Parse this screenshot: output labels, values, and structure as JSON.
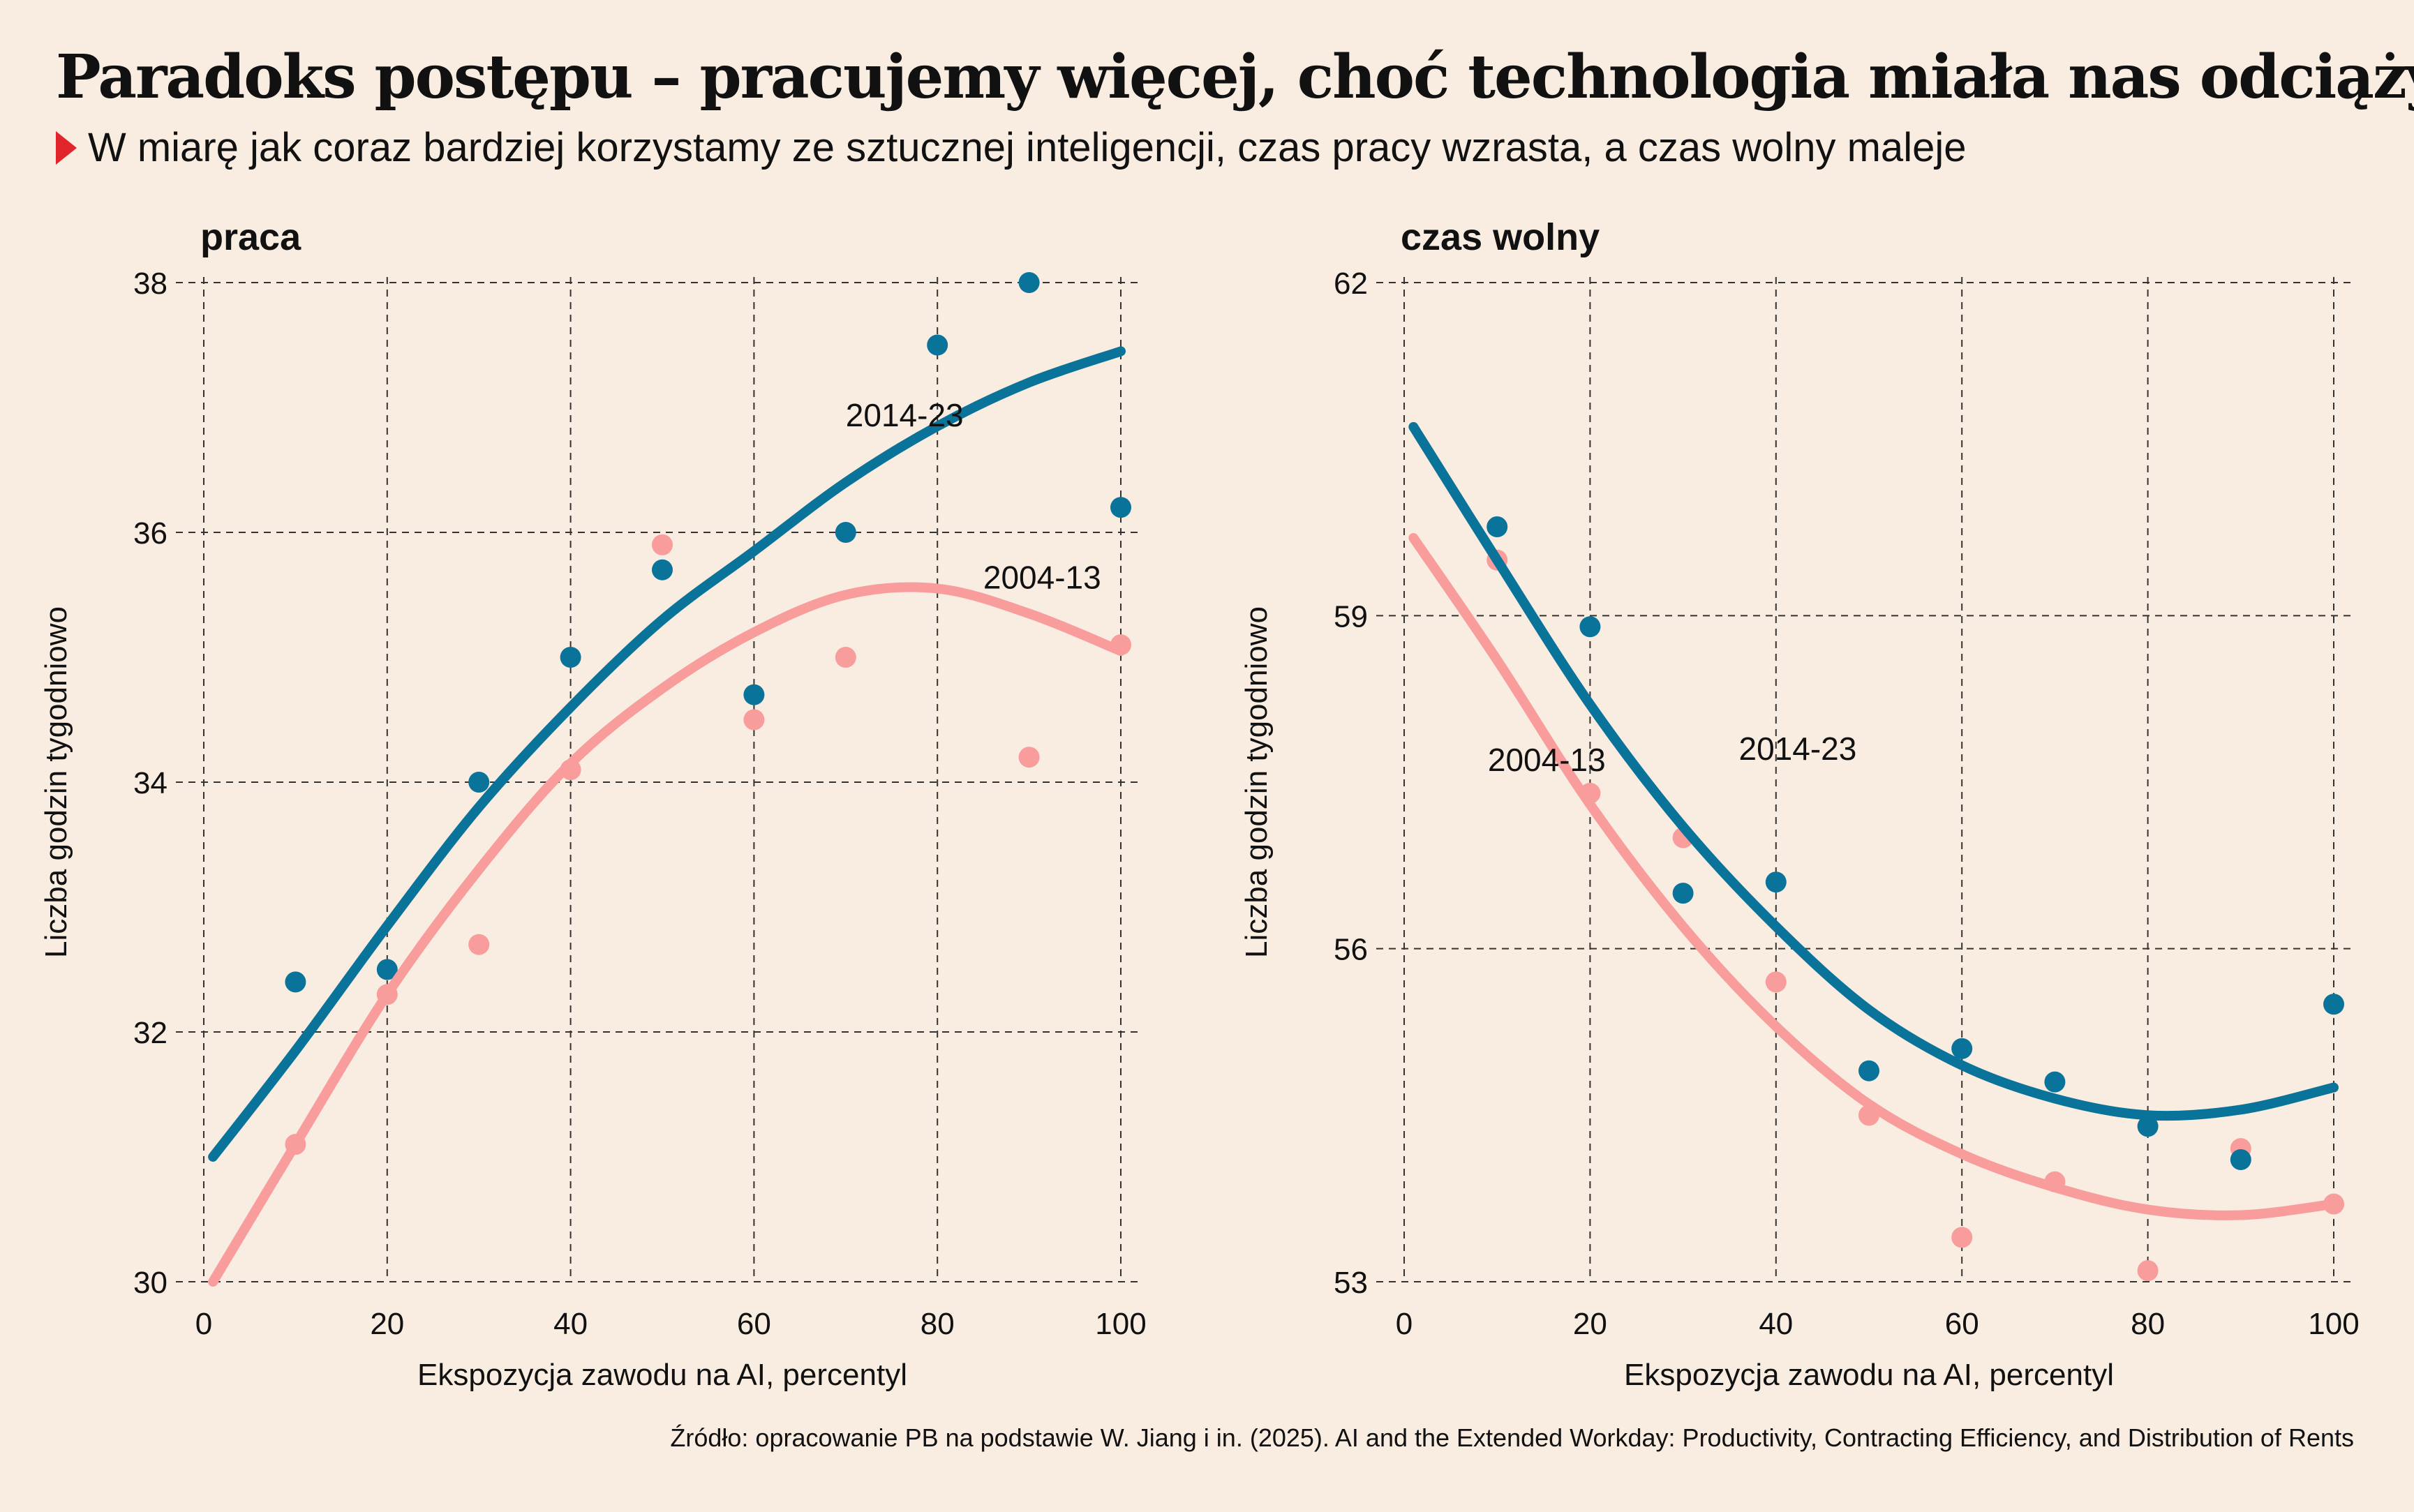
{
  "title": "Paradoks postępu – pracujemy więcej, choć technologia miała nas odciążyć",
  "subtitle": "W miarę jak coraz bardziej korzystamy ze sztucznej inteligencji, czas pracy wzrasta, a czas wolny maleje",
  "source": "Źródło: opracowanie PB na podstawie W. Jiang i in. (2025). AI and the Extended Workday: Productivity, Contracting Efficiency, and Distribution of Rents",
  "colors": {
    "s2014": "#0a739a",
    "s2004": "#f89c9c",
    "background": "#f9ede1"
  },
  "chart_data": [
    {
      "type": "scatter",
      "title": "praca",
      "xlabel": "Ekspozycja zawodu na AI, percentyl",
      "ylabel": "Liczba godzin tygodniowo",
      "xlim": [
        0,
        100
      ],
      "ylim": [
        30,
        38
      ],
      "xticks": [
        0,
        20,
        40,
        60,
        80,
        100
      ],
      "yticks": [
        30,
        32,
        34,
        36,
        38
      ],
      "grid": true,
      "series": [
        {
          "name": "2014-23",
          "color": "#0a739a",
          "points": [
            [
              10,
              32.4
            ],
            [
              20,
              32.5
            ],
            [
              30,
              34.0
            ],
            [
              40,
              35.0
            ],
            [
              50,
              35.7
            ],
            [
              60,
              34.7
            ],
            [
              70,
              36.0
            ],
            [
              80,
              37.5
            ],
            [
              90,
              38.0
            ],
            [
              100,
              36.2
            ]
          ],
          "trend": [
            [
              1,
              31.0
            ],
            [
              10,
              31.85
            ],
            [
              20,
              32.85
            ],
            [
              30,
              33.8
            ],
            [
              40,
              34.6
            ],
            [
              50,
              35.3
            ],
            [
              60,
              35.85
            ],
            [
              70,
              36.4
            ],
            [
              80,
              36.85
            ],
            [
              90,
              37.2
            ],
            [
              100,
              37.45
            ]
          ]
        },
        {
          "name": "2004-13",
          "color": "#f89c9c",
          "points": [
            [
              10,
              31.1
            ],
            [
              20,
              32.3
            ],
            [
              30,
              32.7
            ],
            [
              40,
              34.1
            ],
            [
              50,
              35.9
            ],
            [
              60,
              34.5
            ],
            [
              70,
              35.0
            ],
            [
              90,
              34.2
            ],
            [
              100,
              35.1
            ]
          ],
          "trend": [
            [
              1,
              30.0
            ],
            [
              10,
              31.1
            ],
            [
              20,
              32.3
            ],
            [
              30,
              33.3
            ],
            [
              40,
              34.15
            ],
            [
              50,
              34.75
            ],
            [
              60,
              35.2
            ],
            [
              70,
              35.5
            ],
            [
              80,
              35.55
            ],
            [
              90,
              35.35
            ],
            [
              100,
              35.05
            ]
          ]
        }
      ]
    },
    {
      "type": "scatter",
      "title": "czas wolny",
      "xlabel": "Ekspozycja zawodu na AI, percentyl",
      "ylabel": "Liczba godzin tygodniowo",
      "xlim": [
        0,
        100
      ],
      "ylim": [
        53,
        62
      ],
      "xticks": [
        0,
        20,
        40,
        60,
        80,
        100
      ],
      "yticks": [
        53,
        56,
        59,
        62
      ],
      "grid": true,
      "series": [
        {
          "name": "2014-23",
          "color": "#0a739a",
          "points": [
            [
              10,
              59.8
            ],
            [
              20,
              58.9
            ],
            [
              30,
              56.5
            ],
            [
              40,
              56.6
            ],
            [
              50,
              54.9
            ],
            [
              60,
              55.1
            ],
            [
              70,
              54.8
            ],
            [
              80,
              54.4
            ],
            [
              90,
              54.1
            ],
            [
              100,
              55.5
            ]
          ],
          "trend": [
            [
              1,
              60.7
            ],
            [
              10,
              59.5
            ],
            [
              20,
              58.2
            ],
            [
              30,
              57.1
            ],
            [
              40,
              56.2
            ],
            [
              50,
              55.45
            ],
            [
              60,
              54.95
            ],
            [
              70,
              54.65
            ],
            [
              80,
              54.5
            ],
            [
              90,
              54.55
            ],
            [
              100,
              54.75
            ]
          ]
        },
        {
          "name": "2004-13",
          "color": "#f89c9c",
          "points": [
            [
              10,
              59.5
            ],
            [
              20,
              57.4
            ],
            [
              30,
              57.0
            ],
            [
              40,
              55.7
            ],
            [
              50,
              54.5
            ],
            [
              60,
              53.4
            ],
            [
              70,
              53.9
            ],
            [
              80,
              53.1
            ],
            [
              90,
              54.2
            ],
            [
              100,
              53.7
            ]
          ],
          "trend": [
            [
              1,
              59.7
            ],
            [
              10,
              58.6
            ],
            [
              20,
              57.3
            ],
            [
              30,
              56.2
            ],
            [
              40,
              55.3
            ],
            [
              50,
              54.6
            ],
            [
              60,
              54.15
            ],
            [
              70,
              53.85
            ],
            [
              80,
              53.65
            ],
            [
              90,
              53.6
            ],
            [
              100,
              53.7
            ]
          ]
        }
      ]
    }
  ]
}
